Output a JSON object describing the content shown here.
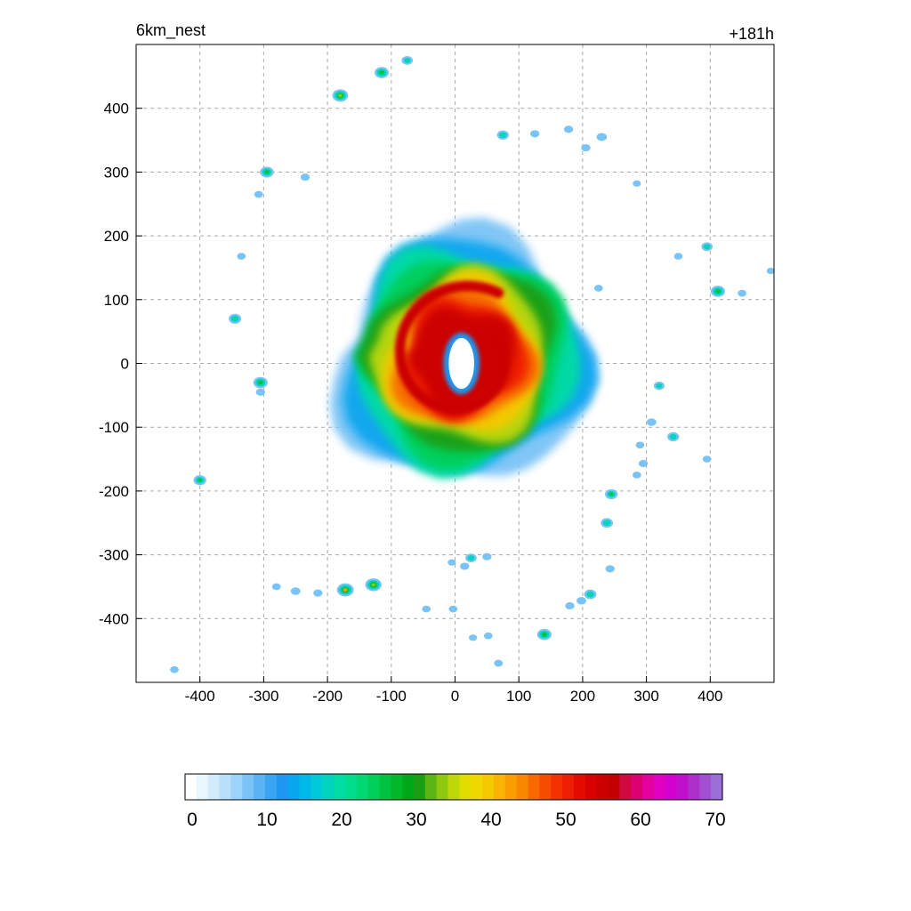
{
  "header": {
    "label_left": "6km_nest",
    "label_right": "+181h"
  },
  "chart_data": {
    "type": "heatmap",
    "title": "",
    "xlabel": "",
    "ylabel": "",
    "xlim": [
      -500,
      500
    ],
    "ylim": [
      -500,
      500
    ],
    "grid": true,
    "x_ticks": [
      -400,
      -300,
      -200,
      -100,
      0,
      100,
      200,
      300,
      400
    ],
    "y_ticks": [
      400,
      300,
      200,
      100,
      0,
      -100,
      -200,
      -300,
      -400
    ],
    "storm": {
      "center": [
        10,
        10
      ],
      "eye": {
        "x": [
          -10,
          30
        ],
        "y": [
          -40,
          40
        ]
      },
      "outer_radius": 200,
      "max_value": 55
    },
    "cells": [
      {
        "x": -180,
        "y": 420,
        "v": 38
      },
      {
        "x": -115,
        "y": 456,
        "v": 32
      },
      {
        "x": -75,
        "y": 475,
        "v": 20
      },
      {
        "x": -295,
        "y": 300,
        "v": 30
      },
      {
        "x": -235,
        "y": 292,
        "v": 12
      },
      {
        "x": -308,
        "y": 265,
        "v": 10
      },
      {
        "x": -335,
        "y": 168,
        "v": 10
      },
      {
        "x": -345,
        "y": 70,
        "v": 25
      },
      {
        "x": -305,
        "y": -30,
        "v": 32
      },
      {
        "x": -305,
        "y": -45,
        "v": 12
      },
      {
        "x": -400,
        "y": -183,
        "v": 26
      },
      {
        "x": 75,
        "y": 358,
        "v": 22
      },
      {
        "x": 125,
        "y": 360,
        "v": 12
      },
      {
        "x": 178,
        "y": 367,
        "v": 12
      },
      {
        "x": 230,
        "y": 355,
        "v": 16
      },
      {
        "x": 205,
        "y": 338,
        "v": 12
      },
      {
        "x": 285,
        "y": 282,
        "v": 8
      },
      {
        "x": 225,
        "y": 118,
        "v": 10
      },
      {
        "x": 350,
        "y": 168,
        "v": 10
      },
      {
        "x": 395,
        "y": 183,
        "v": 20
      },
      {
        "x": 412,
        "y": 113,
        "v": 32
      },
      {
        "x": 450,
        "y": 110,
        "v": 10
      },
      {
        "x": 495,
        "y": 145,
        "v": 8
      },
      {
        "x": 320,
        "y": -35,
        "v": 18
      },
      {
        "x": 308,
        "y": -92,
        "v": 14
      },
      {
        "x": 342,
        "y": -115,
        "v": 22
      },
      {
        "x": 290,
        "y": -128,
        "v": 10
      },
      {
        "x": 295,
        "y": -157,
        "v": 12
      },
      {
        "x": 285,
        "y": -175,
        "v": 10
      },
      {
        "x": 395,
        "y": -150,
        "v": 10
      },
      {
        "x": 245,
        "y": -205,
        "v": 26
      },
      {
        "x": 238,
        "y": -250,
        "v": 24
      },
      {
        "x": 243,
        "y": -322,
        "v": 12
      },
      {
        "x": 212,
        "y": -362,
        "v": 24
      },
      {
        "x": 198,
        "y": -372,
        "v": 14
      },
      {
        "x": 180,
        "y": -380,
        "v": 12
      },
      {
        "x": 140,
        "y": -425,
        "v": 32
      },
      {
        "x": 68,
        "y": -470,
        "v": 10
      },
      {
        "x": 52,
        "y": -427,
        "v": 10
      },
      {
        "x": 28,
        "y": -430,
        "v": 8
      },
      {
        "x": 25,
        "y": -305,
        "v": 20
      },
      {
        "x": 50,
        "y": -303,
        "v": 12
      },
      {
        "x": 15,
        "y": -318,
        "v": 12
      },
      {
        "x": -5,
        "y": -312,
        "v": 8
      },
      {
        "x": -3,
        "y": -385,
        "v": 10
      },
      {
        "x": -45,
        "y": -385,
        "v": 10
      },
      {
        "x": -128,
        "y": -347,
        "v": 40
      },
      {
        "x": -172,
        "y": -355,
        "v": 42
      },
      {
        "x": -215,
        "y": -360,
        "v": 12
      },
      {
        "x": -250,
        "y": -357,
        "v": 14
      },
      {
        "x": -280,
        "y": -350,
        "v": 10
      },
      {
        "x": -440,
        "y": -480,
        "v": 10
      }
    ],
    "colorbar": {
      "ticks": [
        "0",
        "10",
        "20",
        "30",
        "40",
        "50",
        "60",
        "70"
      ],
      "min": 0,
      "max": 70,
      "colors": [
        "#ffffff",
        "#eaf6fd",
        "#d2ecfb",
        "#b8e0fa",
        "#9cd3f8",
        "#7ac3f6",
        "#5ab3f4",
        "#38a4f2",
        "#1f97f0",
        "#07a6ee",
        "#00b9e8",
        "#00c9d8",
        "#00d4bd",
        "#00dca4",
        "#00dd8c",
        "#00d874",
        "#00cf5a",
        "#00c440",
        "#00b82a",
        "#00a818",
        "#1c9e14",
        "#5cb512",
        "#90c80e",
        "#bed80a",
        "#e0de00",
        "#f0d800",
        "#f6c800",
        "#f8b400",
        "#f89e00",
        "#f88800",
        "#f86a00",
        "#f84c00",
        "#f43200",
        "#ee1e00",
        "#e40c00",
        "#d80000",
        "#cc0000",
        "#c40000",
        "#d00a40",
        "#dc0070",
        "#e400a0",
        "#e000c0",
        "#d400d0",
        "#c010cc",
        "#ae30cc",
        "#a050d0",
        "#9a70d8"
      ]
    }
  }
}
